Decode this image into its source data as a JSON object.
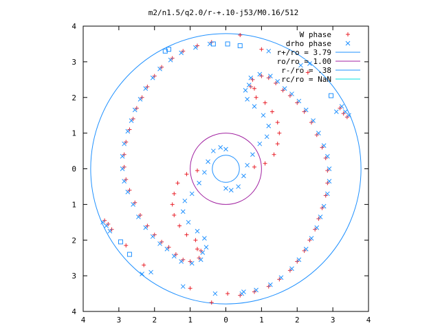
{
  "chart_data": {
    "type": "scatter",
    "title": "m2/n1.5/q2.0/r-+.10-j53/M0.16/512",
    "xlim": [
      -4,
      4
    ],
    "ylim": [
      -4,
      4
    ],
    "x_tick_values": [
      -4,
      -3,
      -2,
      -1,
      0,
      1,
      2,
      3,
      4
    ],
    "x_tick_labels": [
      "4",
      "3",
      "2",
      "1",
      "0",
      "1",
      "2",
      "3",
      "4"
    ],
    "y_tick_values": [
      4,
      3,
      2,
      1,
      0,
      -1,
      -2,
      -3,
      -4
    ],
    "y_tick_labels": [
      "4",
      "3",
      "2",
      "1",
      "0",
      "1",
      "2",
      "3",
      "4"
    ],
    "grid": false,
    "legend_position": "top-right",
    "legend": [
      {
        "label": "W phase",
        "marker": "+",
        "color": "#e8202a"
      },
      {
        "label": "drho phase",
        "marker": "x",
        "color": "#1e90ff"
      },
      {
        "label": "r+/ro = 3.79",
        "marker": "line",
        "color": "#1e90ff"
      },
      {
        "label": "ro/ro = 1.00",
        "marker": "line",
        "color": "#a020a0"
      },
      {
        "label": "r-/ro = .38",
        "marker": "line",
        "color": "#1e90ff"
      },
      {
        "label": "rc/ro = NaN",
        "marker": "line",
        "color": "#00e0e0"
      }
    ],
    "circles": [
      {
        "name": "r+/ro = 3.79",
        "radius": 3.79,
        "color": "#1e90ff"
      },
      {
        "name": "ro/ro = 1.00",
        "radius": 1.0,
        "color": "#a020a0"
      },
      {
        "name": "r-/ro = .38",
        "radius": 0.38,
        "color": "#1e90ff"
      }
    ],
    "series": [
      {
        "name": "W phase",
        "color": "#e8202a",
        "marker": "+",
        "points": [
          [
            0.7,
            2.3
          ],
          [
            0.75,
            2.5
          ],
          [
            1.0,
            2.6
          ],
          [
            1.2,
            2.55
          ],
          [
            1.4,
            2.4
          ],
          [
            1.6,
            2.2
          ],
          [
            1.8,
            2.05
          ],
          [
            2.0,
            1.85
          ],
          [
            2.2,
            1.6
          ],
          [
            2.4,
            1.3
          ],
          [
            2.55,
            0.95
          ],
          [
            2.7,
            0.6
          ],
          [
            2.8,
            0.3
          ],
          [
            2.85,
            -0.05
          ],
          [
            2.85,
            -0.4
          ],
          [
            2.8,
            -0.75
          ],
          [
            2.7,
            -1.1
          ],
          [
            2.6,
            -1.4
          ],
          [
            2.5,
            -1.7
          ],
          [
            2.35,
            -2.0
          ],
          [
            2.2,
            -2.3
          ],
          [
            2.0,
            -2.6
          ],
          [
            1.8,
            -2.85
          ],
          [
            1.5,
            -3.1
          ],
          [
            1.2,
            -3.3
          ],
          [
            0.8,
            -3.45
          ],
          [
            0.4,
            -3.55
          ],
          [
            -0.7,
            -2.3
          ],
          [
            -0.75,
            -2.5
          ],
          [
            -1.0,
            -2.6
          ],
          [
            -1.2,
            -2.55
          ],
          [
            -1.4,
            -2.4
          ],
          [
            -1.6,
            -2.2
          ],
          [
            -1.8,
            -2.05
          ],
          [
            -2.0,
            -1.85
          ],
          [
            -2.2,
            -1.6
          ],
          [
            -2.4,
            -1.3
          ],
          [
            -2.55,
            -0.95
          ],
          [
            -2.7,
            -0.6
          ],
          [
            -2.8,
            -0.3
          ],
          [
            -2.85,
            0.05
          ],
          [
            -2.85,
            0.4
          ],
          [
            -2.8,
            0.75
          ],
          [
            -2.7,
            1.1
          ],
          [
            -2.6,
            1.4
          ],
          [
            -2.5,
            1.7
          ],
          [
            -2.35,
            2.0
          ],
          [
            -2.2,
            2.3
          ],
          [
            -2.0,
            2.6
          ],
          [
            -1.8,
            2.85
          ],
          [
            -1.5,
            3.1
          ],
          [
            -1.2,
            3.3
          ],
          [
            -0.8,
            3.45
          ],
          [
            -0.4,
            3.55
          ],
          [
            0.8,
            2.25
          ],
          [
            0.85,
            2.0
          ],
          [
            1.1,
            1.85
          ],
          [
            1.3,
            1.6
          ],
          [
            1.45,
            1.3
          ],
          [
            1.5,
            1.0
          ],
          [
            1.45,
            0.7
          ],
          [
            1.35,
            0.4
          ],
          [
            1.1,
            0.15
          ],
          [
            0.8,
            0.05
          ],
          [
            -0.8,
            -2.25
          ],
          [
            -0.85,
            -2.0
          ],
          [
            -1.1,
            -1.85
          ],
          [
            -1.3,
            -1.6
          ],
          [
            -1.45,
            -1.3
          ],
          [
            -1.5,
            -1.0
          ],
          [
            -1.45,
            -0.7
          ],
          [
            -1.35,
            -0.4
          ],
          [
            -1.1,
            -0.15
          ],
          [
            -0.8,
            -0.05
          ],
          [
            3.2,
            1.7
          ],
          [
            3.3,
            1.55
          ],
          [
            3.4,
            1.45
          ],
          [
            -3.2,
            -1.7
          ],
          [
            -3.3,
            -1.55
          ],
          [
            -3.4,
            -1.45
          ],
          [
            0.4,
            3.75
          ],
          [
            1.0,
            3.35
          ],
          [
            -0.4,
            -3.75
          ],
          [
            -1.0,
            -3.35
          ],
          [
            -2.8,
            -2.15
          ],
          [
            -2.3,
            -2.7
          ],
          [
            0.05,
            -3.5
          ],
          [
            2.3,
            2.7
          ]
        ]
      },
      {
        "name": "drho phase",
        "color": "#1e90ff",
        "marker": "x",
        "points": [
          [
            0.65,
            2.35
          ],
          [
            0.7,
            2.55
          ],
          [
            0.95,
            2.65
          ],
          [
            1.25,
            2.6
          ],
          [
            1.45,
            2.45
          ],
          [
            1.65,
            2.25
          ],
          [
            1.85,
            2.1
          ],
          [
            2.05,
            1.9
          ],
          [
            2.25,
            1.65
          ],
          [
            2.45,
            1.35
          ],
          [
            2.6,
            1.0
          ],
          [
            2.75,
            0.65
          ],
          [
            2.85,
            0.35
          ],
          [
            2.9,
            0.0
          ],
          [
            2.9,
            -0.35
          ],
          [
            2.85,
            -0.7
          ],
          [
            2.75,
            -1.05
          ],
          [
            2.65,
            -1.35
          ],
          [
            2.55,
            -1.65
          ],
          [
            2.4,
            -1.95
          ],
          [
            2.25,
            -2.25
          ],
          [
            2.05,
            -2.55
          ],
          [
            1.85,
            -2.8
          ],
          [
            1.55,
            -3.05
          ],
          [
            1.25,
            -3.25
          ],
          [
            0.85,
            -3.4
          ],
          [
            0.45,
            -3.5
          ],
          [
            -0.65,
            -2.35
          ],
          [
            -0.7,
            -2.55
          ],
          [
            -0.95,
            -2.65
          ],
          [
            -1.25,
            -2.6
          ],
          [
            -1.45,
            -2.45
          ],
          [
            -1.65,
            -2.25
          ],
          [
            -1.85,
            -2.1
          ],
          [
            -2.05,
            -1.9
          ],
          [
            -2.25,
            -1.65
          ],
          [
            -2.45,
            -1.35
          ],
          [
            -2.6,
            -1.0
          ],
          [
            -2.75,
            -0.65
          ],
          [
            -2.85,
            -0.35
          ],
          [
            -2.9,
            0.0
          ],
          [
            -2.9,
            0.35
          ],
          [
            -2.85,
            0.7
          ],
          [
            -2.75,
            1.05
          ],
          [
            -2.65,
            1.35
          ],
          [
            -2.55,
            1.65
          ],
          [
            -2.4,
            1.95
          ],
          [
            -2.25,
            2.25
          ],
          [
            -2.05,
            2.55
          ],
          [
            -1.85,
            2.8
          ],
          [
            -1.55,
            3.05
          ],
          [
            -1.25,
            3.25
          ],
          [
            -0.85,
            3.4
          ],
          [
            -0.45,
            3.5
          ],
          [
            0.55,
            2.2
          ],
          [
            0.6,
            1.95
          ],
          [
            0.8,
            1.75
          ],
          [
            1.05,
            1.5
          ],
          [
            1.2,
            1.2
          ],
          [
            1.15,
            0.9
          ],
          [
            0.95,
            0.7
          ],
          [
            0.75,
            0.4
          ],
          [
            0.6,
            0.1
          ],
          [
            0.5,
            -0.2
          ],
          [
            0.35,
            -0.5
          ],
          [
            0.15,
            -0.6
          ],
          [
            0.0,
            -0.55
          ],
          [
            -0.55,
            -2.2
          ],
          [
            -0.6,
            -1.95
          ],
          [
            -0.8,
            -1.75
          ],
          [
            -1.05,
            -1.5
          ],
          [
            -1.2,
            -1.2
          ],
          [
            -1.15,
            -0.9
          ],
          [
            -0.95,
            -0.7
          ],
          [
            -0.75,
            -0.4
          ],
          [
            -0.6,
            -0.1
          ],
          [
            -0.5,
            0.2
          ],
          [
            -0.35,
            0.5
          ],
          [
            -0.15,
            0.6
          ],
          [
            0.0,
            0.55
          ],
          [
            3.25,
            1.75
          ],
          [
            3.35,
            1.6
          ],
          [
            3.45,
            1.5
          ],
          [
            -3.25,
            -1.75
          ],
          [
            -3.35,
            -1.6
          ],
          [
            -3.45,
            -1.5
          ],
          [
            -0.3,
            -3.5
          ],
          [
            0.5,
            -3.45
          ],
          [
            -1.2,
            -3.3
          ],
          [
            -2.35,
            -2.95
          ],
          [
            -2.1,
            -2.9
          ],
          [
            2.35,
            2.95
          ],
          [
            2.1,
            2.9
          ],
          [
            1.2,
            3.3
          ],
          [
            3.1,
            1.6
          ]
        ]
      },
      {
        "name": "drho phase squares",
        "color": "#1e90ff",
        "marker": "square",
        "points": [
          [
            -1.6,
            3.35
          ],
          [
            -1.7,
            3.3
          ],
          [
            -0.35,
            3.5
          ],
          [
            0.05,
            3.5
          ],
          [
            0.4,
            3.45
          ],
          [
            -2.7,
            -2.4
          ],
          [
            -2.95,
            -2.05
          ],
          [
            2.95,
            2.05
          ]
        ]
      }
    ]
  }
}
